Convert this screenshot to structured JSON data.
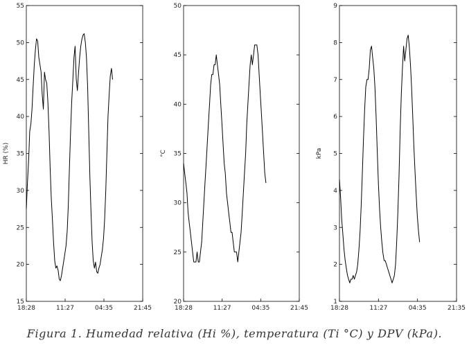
{
  "chart_data": [
    {
      "type": "line",
      "ylabel": "HR (%)",
      "ylim": [
        15,
        55
      ],
      "yticks": [
        "15",
        "20",
        "25",
        "30",
        "35",
        "40",
        "45",
        "50",
        "55"
      ],
      "xticks": [
        "18:28",
        "11:27",
        "04:35",
        "21:45"
      ],
      "x_range_hours": [
        0,
        51.28
      ],
      "series": [
        {
          "name": "HR",
          "points": [
            [
              0,
              27.5
            ],
            [
              0.5,
              31
            ],
            [
              1,
              34
            ],
            [
              1.5,
              38
            ],
            [
              2,
              39
            ],
            [
              2.5,
              41
            ],
            [
              3,
              44
            ],
            [
              3.5,
              47
            ],
            [
              4,
              49
            ],
            [
              4.5,
              50.5
            ],
            [
              5,
              50.2
            ],
            [
              5.5,
              48
            ],
            [
              6,
              47
            ],
            [
              6.5,
              46
            ],
            [
              7,
              43
            ],
            [
              7.5,
              41
            ],
            [
              8,
              46
            ],
            [
              8.5,
              45
            ],
            [
              9,
              44.5
            ],
            [
              9.5,
              42
            ],
            [
              10,
              38
            ],
            [
              10.5,
              33
            ],
            [
              11,
              29
            ],
            [
              11.5,
              26
            ],
            [
              12,
              23
            ],
            [
              12.5,
              20.5
            ],
            [
              13,
              19.5
            ],
            [
              13.5,
              19.8
            ],
            [
              14,
              19.2
            ],
            [
              14.5,
              18
            ],
            [
              15,
              17.8
            ],
            [
              15.5,
              18.5
            ],
            [
              16,
              19.5
            ],
            [
              16.5,
              20.5
            ],
            [
              17,
              21.5
            ],
            [
              17.5,
              22.5
            ],
            [
              18,
              24.5
            ],
            [
              18.5,
              28
            ],
            [
              19,
              33
            ],
            [
              19.5,
              38
            ],
            [
              20,
              42
            ],
            [
              20.5,
              45
            ],
            [
              21,
              48
            ],
            [
              21.5,
              49.5
            ],
            [
              22,
              45
            ],
            [
              22.5,
              43.5
            ],
            [
              23,
              46
            ],
            [
              23.5,
              48
            ],
            [
              24,
              49.5
            ],
            [
              24.5,
              50.5
            ],
            [
              25,
              51
            ],
            [
              25.5,
              51.2
            ],
            [
              26,
              50
            ],
            [
              26.5,
              48
            ],
            [
              27,
              44
            ],
            [
              27.5,
              38
            ],
            [
              28,
              32
            ],
            [
              28.5,
              27
            ],
            [
              29,
              23
            ],
            [
              29.5,
              20.5
            ],
            [
              30,
              19.5
            ],
            [
              30.5,
              20.3
            ],
            [
              31,
              19
            ],
            [
              31.5,
              18.8
            ],
            [
              32,
              19.5
            ],
            [
              32.5,
              20
            ],
            [
              33,
              21
            ],
            [
              33.5,
              22
            ],
            [
              34,
              23.5
            ],
            [
              34.5,
              26
            ],
            [
              35,
              30
            ],
            [
              35.5,
              35
            ],
            [
              36,
              40
            ],
            [
              36.5,
              43
            ],
            [
              37,
              45.5
            ],
            [
              37.5,
              46.5
            ],
            [
              38,
              45
            ]
          ]
        }
      ]
    },
    {
      "type": "line",
      "ylabel": "°C",
      "ylim": [
        20,
        50
      ],
      "yticks": [
        "20",
        "25",
        "30",
        "35",
        "40",
        "45",
        "50"
      ],
      "xticks": [
        "18:28",
        "11:27",
        "04:35",
        "21:45"
      ],
      "x_range_hours": [
        0,
        51.28
      ],
      "series": [
        {
          "name": "T",
          "points": [
            [
              0,
              34
            ],
            [
              0.5,
              33
            ],
            [
              1,
              32
            ],
            [
              1.5,
              31
            ],
            [
              2,
              29
            ],
            [
              2.5,
              28
            ],
            [
              3,
              27
            ],
            [
              3.5,
              26
            ],
            [
              4,
              25
            ],
            [
              4.5,
              24
            ],
            [
              5,
              24
            ],
            [
              5.5,
              24
            ],
            [
              6,
              25
            ],
            [
              6.5,
              24
            ],
            [
              7,
              24
            ],
            [
              7.5,
              25
            ],
            [
              8,
              26
            ],
            [
              8.5,
              28
            ],
            [
              9,
              30
            ],
            [
              9.5,
              32
            ],
            [
              10,
              34
            ],
            [
              10.5,
              36
            ],
            [
              11,
              38
            ],
            [
              11.5,
              40
            ],
            [
              12,
              42
            ],
            [
              12.5,
              43
            ],
            [
              13,
              43
            ],
            [
              13.5,
              44
            ],
            [
              14,
              44
            ],
            [
              14.5,
              45
            ],
            [
              15,
              44
            ],
            [
              15.5,
              43
            ],
            [
              16,
              42
            ],
            [
              16.5,
              40
            ],
            [
              17,
              38
            ],
            [
              17.5,
              36
            ],
            [
              18,
              34
            ],
            [
              18.5,
              33
            ],
            [
              19,
              31
            ],
            [
              19.5,
              30
            ],
            [
              20,
              29
            ],
            [
              20.5,
              28
            ],
            [
              21,
              27
            ],
            [
              21.5,
              27
            ],
            [
              22,
              26
            ],
            [
              22.5,
              25
            ],
            [
              23,
              25
            ],
            [
              23.5,
              25
            ],
            [
              24,
              24
            ],
            [
              24.5,
              25
            ],
            [
              25,
              26
            ],
            [
              25.5,
              27
            ],
            [
              26,
              29
            ],
            [
              26.5,
              31
            ],
            [
              27,
              33
            ],
            [
              27.5,
              35
            ],
            [
              28,
              38
            ],
            [
              28.5,
              40
            ],
            [
              29,
              42
            ],
            [
              29.5,
              44
            ],
            [
              30,
              45
            ],
            [
              30.5,
              44
            ],
            [
              31,
              45
            ],
            [
              31.5,
              46
            ],
            [
              32,
              46
            ],
            [
              32.5,
              46
            ],
            [
              33,
              45
            ],
            [
              33.5,
              43
            ],
            [
              34,
              41
            ],
            [
              34.5,
              39
            ],
            [
              35,
              37
            ],
            [
              35.5,
              35
            ],
            [
              36,
              33
            ],
            [
              36.5,
              32
            ]
          ]
        }
      ]
    },
    {
      "type": "line",
      "ylabel": "kPa",
      "ylim": [
        1,
        9
      ],
      "yticks": [
        "1",
        "2",
        "3",
        "4",
        "5",
        "6",
        "7",
        "8",
        "9"
      ],
      "xticks": [
        "18:28",
        "11:27",
        "04:35",
        "21:35"
      ],
      "x_range_hours": [
        0,
        51.12
      ],
      "series": [
        {
          "name": "DPV",
          "points": [
            [
              0,
              4.3
            ],
            [
              0.5,
              3.8
            ],
            [
              1,
              3.2
            ],
            [
              1.5,
              2.8
            ],
            [
              2,
              2.4
            ],
            [
              2.5,
              2.1
            ],
            [
              3,
              1.9
            ],
            [
              3.5,
              1.7
            ],
            [
              4,
              1.6
            ],
            [
              4.5,
              1.5
            ],
            [
              5,
              1.6
            ],
            [
              5.5,
              1.6
            ],
            [
              6,
              1.7
            ],
            [
              6.5,
              1.6
            ],
            [
              7,
              1.7
            ],
            [
              7.5,
              1.8
            ],
            [
              8,
              2.0
            ],
            [
              8.5,
              2.4
            ],
            [
              9,
              2.9
            ],
            [
              9.5,
              3.6
            ],
            [
              10,
              4.5
            ],
            [
              10.5,
              5.4
            ],
            [
              11,
              6.2
            ],
            [
              11.5,
              6.8
            ],
            [
              12,
              7.0
            ],
            [
              12.5,
              7.0
            ],
            [
              13,
              7.3
            ],
            [
              13.5,
              7.8
            ],
            [
              14,
              7.9
            ],
            [
              14.5,
              7.6
            ],
            [
              15,
              7.3
            ],
            [
              15.5,
              6.8
            ],
            [
              16,
              6.0
            ],
            [
              16.5,
              5.1
            ],
            [
              17,
              4.2
            ],
            [
              17.5,
              3.5
            ],
            [
              18,
              3.0
            ],
            [
              18.5,
              2.6
            ],
            [
              19,
              2.3
            ],
            [
              19.5,
              2.1
            ],
            [
              20,
              2.1
            ],
            [
              20.5,
              2.0
            ],
            [
              21,
              1.9
            ],
            [
              21.5,
              1.8
            ],
            [
              22,
              1.7
            ],
            [
              22.5,
              1.6
            ],
            [
              23,
              1.5
            ],
            [
              23.5,
              1.6
            ],
            [
              24,
              1.7
            ],
            [
              24.5,
              2.0
            ],
            [
              25,
              2.6
            ],
            [
              25.5,
              3.4
            ],
            [
              26,
              4.4
            ],
            [
              26.5,
              5.6
            ],
            [
              27,
              6.6
            ],
            [
              27.5,
              7.3
            ],
            [
              28,
              7.9
            ],
            [
              28.5,
              7.5
            ],
            [
              29,
              7.8
            ],
            [
              29.5,
              8.1
            ],
            [
              30,
              8.2
            ],
            [
              30.5,
              7.9
            ],
            [
              31,
              7.4
            ],
            [
              31.5,
              6.8
            ],
            [
              32,
              6.0
            ],
            [
              32.5,
              5.2
            ],
            [
              33,
              4.5
            ],
            [
              33.5,
              3.9
            ],
            [
              34,
              3.3
            ],
            [
              34.5,
              2.9
            ],
            [
              35,
              2.6
            ]
          ]
        }
      ]
    }
  ],
  "caption": "Figura 1. Humedad relativa (Hi %), temperatura (Ti °C) y DPV (kPa)."
}
